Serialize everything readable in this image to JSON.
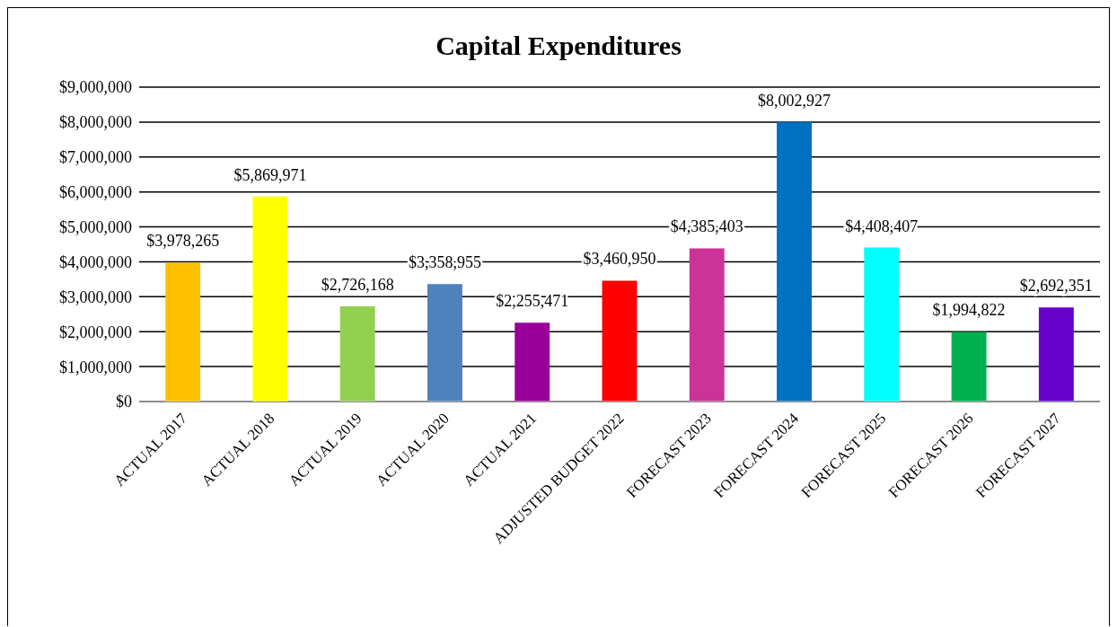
{
  "chart_data": {
    "type": "bar",
    "title": "Capital Expenditures",
    "categories": [
      "ACTUAL 2017",
      "ACTUAL 2018",
      "ACTUAL 2019",
      "ACTUAL 2020",
      "ACTUAL 2021",
      "ADJUSTED BUDGET 2022",
      "FORECAST 2023",
      "FORECAST 2024",
      "FORECAST 2025",
      "FORECAST 2026",
      "FORECAST 2027"
    ],
    "values": [
      3978265,
      5869971,
      2726168,
      3358955,
      2255471,
      3460950,
      4385403,
      8002927,
      4408407,
      1994822,
      2692351
    ],
    "value_labels": [
      "$3,978,265",
      "$5,869,971",
      "$2,726,168",
      "$3,358,955",
      "$2,255,471",
      "$3,460,950",
      "$4,385,403",
      "$8,002,927",
      "$4,408,407",
      "$1,994,822",
      "$2,692,351"
    ],
    "colors": [
      "#ffc000",
      "#ffff00",
      "#92d050",
      "#4f81bd",
      "#990099",
      "#ff0000",
      "#cc3399",
      "#0070c0",
      "#00ffff",
      "#00b050",
      "#6600cc"
    ],
    "ylim": [
      0,
      9000000
    ],
    "yticks": [
      {
        "value": 0,
        "label": "$0"
      },
      {
        "value": 1000000,
        "label": "$1,000,000"
      },
      {
        "value": 2000000,
        "label": "$2,000,000"
      },
      {
        "value": 3000000,
        "label": "$3,000,000"
      },
      {
        "value": 4000000,
        "label": "$4,000,000"
      },
      {
        "value": 5000000,
        "label": "$5,000,000"
      },
      {
        "value": 6000000,
        "label": "$6,000,000"
      },
      {
        "value": 7000000,
        "label": "$7,000,000"
      },
      {
        "value": 8000000,
        "label": "$8,000,000"
      },
      {
        "value": 9000000,
        "label": "$9,000,000"
      }
    ],
    "grid": "y",
    "legend": false
  }
}
